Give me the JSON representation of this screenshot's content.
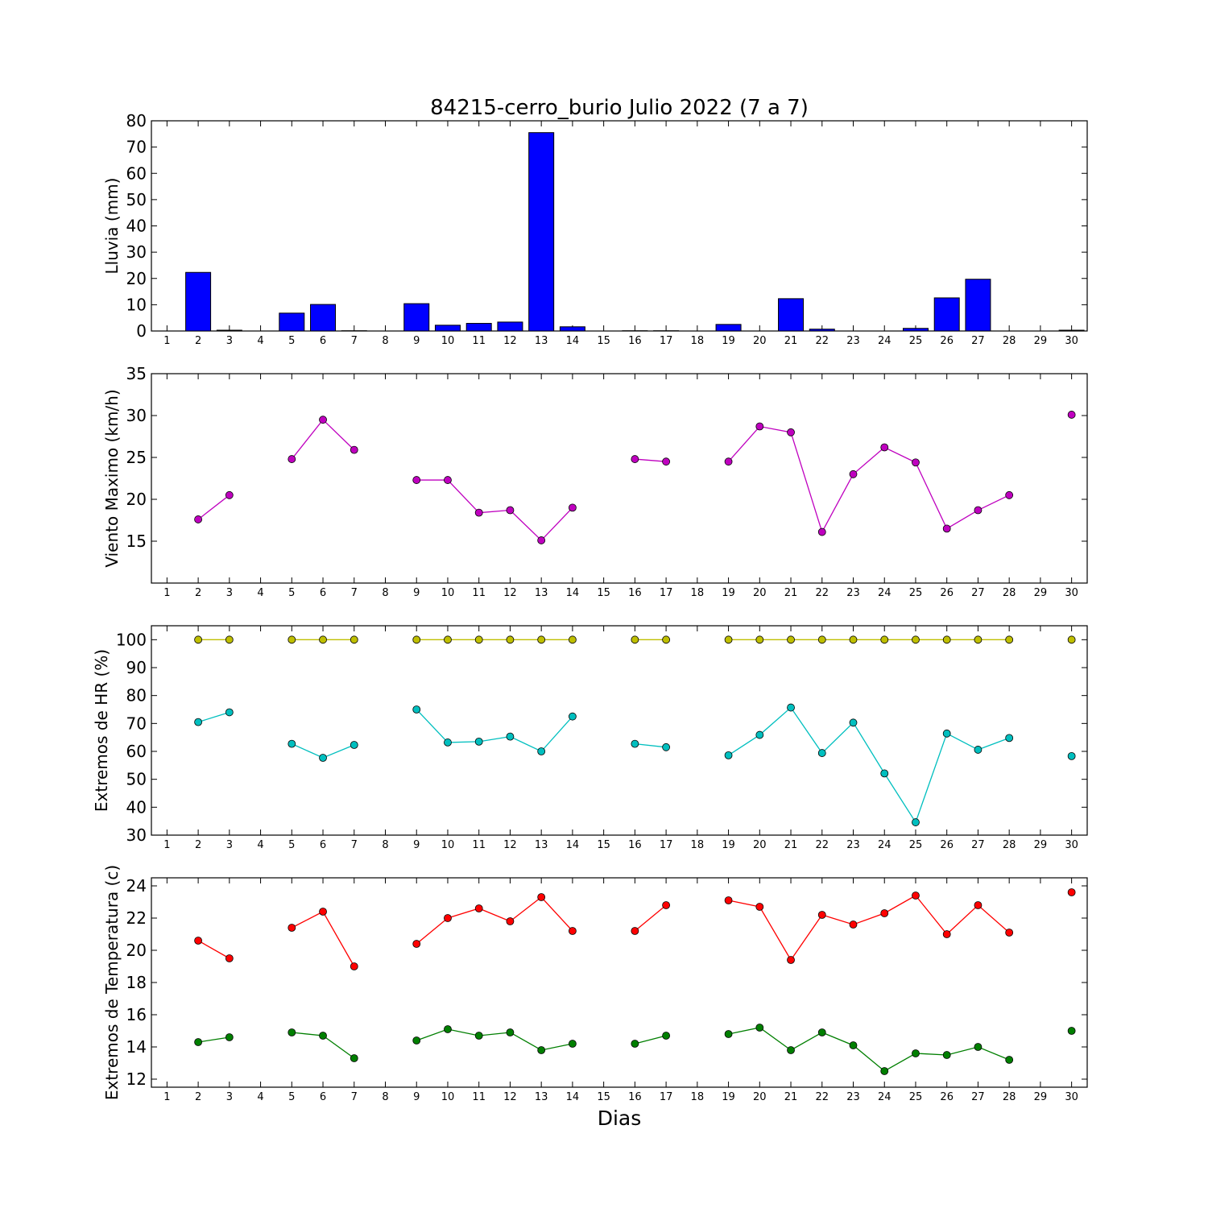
{
  "title": "84215-cerro_burio Julio 2022  (7 a 7)",
  "xlabel": "Dias",
  "chart_data": [
    {
      "type": "bar",
      "ylabel": "Lluvia (mm)",
      "ylim": [
        0,
        80
      ],
      "yticks": [
        0,
        10,
        20,
        30,
        40,
        50,
        60,
        70,
        80
      ],
      "x": [
        1,
        2,
        3,
        4,
        5,
        6,
        7,
        8,
        9,
        10,
        11,
        12,
        13,
        14,
        15,
        16,
        17,
        18,
        19,
        20,
        21,
        22,
        23,
        24,
        25,
        26,
        27,
        28,
        29,
        30
      ],
      "series": [
        {
          "values": [
            0,
            22.3,
            0.3,
            0,
            6.8,
            10.1,
            0.1,
            0,
            10.4,
            2.2,
            2.9,
            3.4,
            75.5,
            1.6,
            0,
            0.1,
            0.1,
            0,
            2.5,
            0,
            12.3,
            0.7,
            0,
            0,
            1,
            12.6,
            19.7,
            0,
            0,
            0.3
          ],
          "color": "#0000ff"
        }
      ]
    },
    {
      "type": "line",
      "ylabel": "Viento Maximo (km/h)",
      "ylim": [
        10,
        35
      ],
      "yticks": [
        15,
        20,
        25,
        30,
        35
      ],
      "x": [
        1,
        2,
        3,
        4,
        5,
        6,
        7,
        8,
        9,
        10,
        11,
        12,
        13,
        14,
        15,
        16,
        17,
        18,
        19,
        20,
        21,
        22,
        23,
        24,
        25,
        26,
        27,
        28,
        29,
        30
      ],
      "series": [
        {
          "values": [
            null,
            17.6,
            20.5,
            null,
            24.8,
            29.5,
            25.9,
            null,
            22.3,
            22.3,
            18.4,
            18.7,
            15.1,
            19.0,
            null,
            24.8,
            24.5,
            null,
            24.5,
            28.7,
            28.0,
            16.1,
            23.0,
            26.2,
            24.4,
            16.5,
            18.7,
            20.5,
            null,
            30.1
          ],
          "color": "#bf00bf"
        }
      ]
    },
    {
      "type": "line",
      "ylabel": "Extremos de HR (%)",
      "ylim": [
        30,
        105
      ],
      "yticks": [
        30,
        40,
        50,
        60,
        70,
        80,
        90,
        100
      ],
      "x": [
        1,
        2,
        3,
        4,
        5,
        6,
        7,
        8,
        9,
        10,
        11,
        12,
        13,
        14,
        15,
        16,
        17,
        18,
        19,
        20,
        21,
        22,
        23,
        24,
        25,
        26,
        27,
        28,
        29,
        30
      ],
      "series": [
        {
          "values": [
            null,
            100,
            100,
            null,
            100,
            100,
            100,
            null,
            100,
            100,
            100,
            100,
            100,
            100,
            null,
            100,
            100,
            null,
            100,
            100,
            100,
            100,
            100,
            100,
            100,
            100,
            100,
            100,
            null,
            100
          ],
          "color": "#bfbf00"
        },
        {
          "values": [
            null,
            70.5,
            74.0,
            null,
            62.7,
            57.7,
            62.3,
            null,
            75.0,
            63.2,
            63.5,
            65.3,
            60.0,
            72.5,
            null,
            62.7,
            61.5,
            null,
            58.6,
            65.9,
            75.7,
            59.4,
            70.3,
            52.1,
            34.6,
            66.4,
            60.6,
            64.8,
            null,
            58.3
          ],
          "color": "#00bfbf"
        }
      ]
    },
    {
      "type": "line",
      "ylabel": "Extremos de Temperatura (c)",
      "ylim": [
        11.5,
        24.5
      ],
      "yticks": [
        12,
        14,
        16,
        18,
        20,
        22,
        24
      ],
      "x": [
        1,
        2,
        3,
        4,
        5,
        6,
        7,
        8,
        9,
        10,
        11,
        12,
        13,
        14,
        15,
        16,
        17,
        18,
        19,
        20,
        21,
        22,
        23,
        24,
        25,
        26,
        27,
        28,
        29,
        30
      ],
      "series": [
        {
          "values": [
            null,
            20.6,
            19.5,
            null,
            21.4,
            22.4,
            19.0,
            null,
            20.4,
            22.0,
            22.6,
            21.8,
            23.3,
            21.2,
            null,
            21.2,
            22.8,
            null,
            23.1,
            22.7,
            19.4,
            22.2,
            21.6,
            22.3,
            23.4,
            21.0,
            22.8,
            21.1,
            null,
            23.6
          ],
          "color": "#ff0000"
        },
        {
          "values": [
            null,
            14.3,
            14.6,
            null,
            14.9,
            14.7,
            13.3,
            null,
            14.4,
            15.1,
            14.7,
            14.9,
            13.8,
            14.2,
            null,
            14.2,
            14.7,
            null,
            14.8,
            15.2,
            13.8,
            14.9,
            14.1,
            12.5,
            13.6,
            13.5,
            14.0,
            13.2,
            null,
            15.0
          ],
          "color": "#007f00"
        }
      ]
    }
  ]
}
